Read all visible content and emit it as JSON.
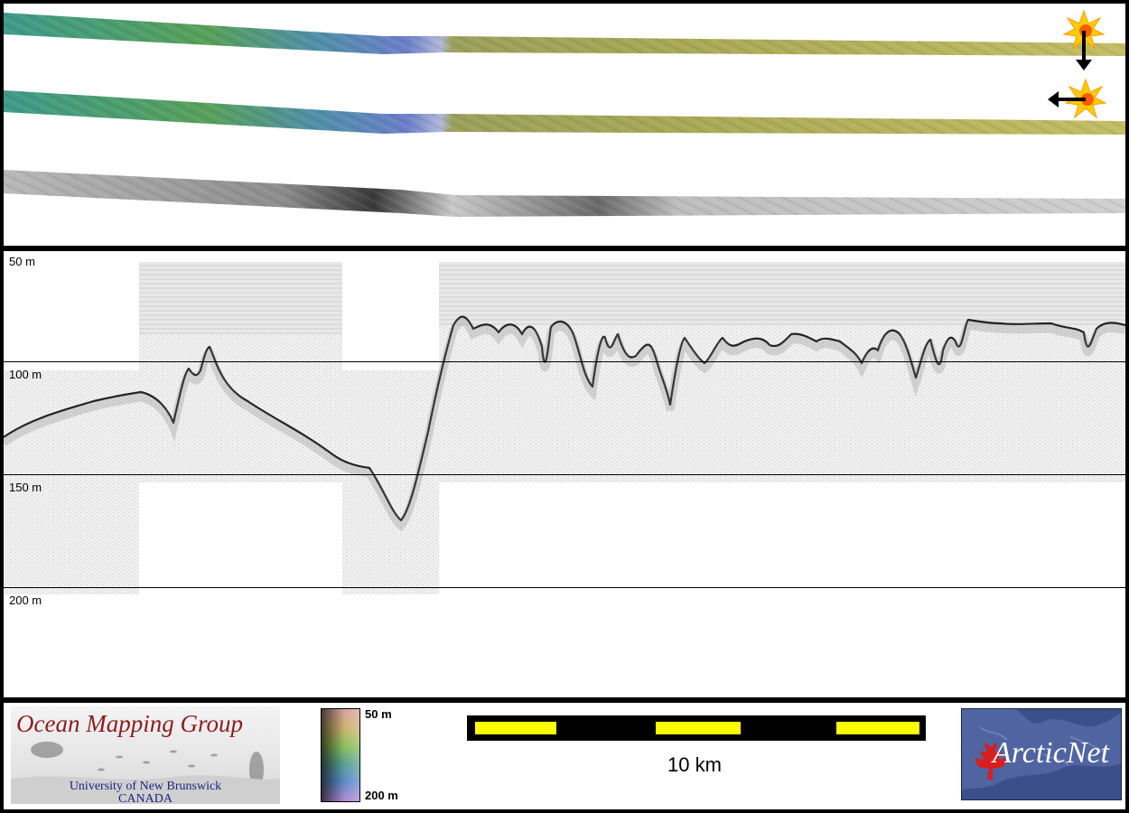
{
  "depth_axis": {
    "labels": [
      "50 m",
      "100 m",
      "150 m",
      "200 m"
    ]
  },
  "colorbar": {
    "top_label": "50 m",
    "bottom_label": "200 m"
  },
  "scale_bar": {
    "label": "10 km",
    "colors": {
      "filled": "#ffff00",
      "empty": "#000000"
    }
  },
  "logos": {
    "ocean_mapping": {
      "title": "Ocean Mapping Group",
      "line1": "University of New Brunswick",
      "line2": "CANADA"
    },
    "arcticnet": {
      "text": "ArcticNet"
    }
  },
  "sun_icons": [
    {
      "name": "sun-illumination-north-icon",
      "arrow": "down"
    },
    {
      "name": "sun-illumination-east-icon",
      "arrow": "left"
    }
  ],
  "colors": {
    "background": "#000000",
    "panel": "#ffffff",
    "swath_deep": "#4a8fb8",
    "swath_mid": "#5fae7a",
    "swath_shallow": "#b8b55a",
    "echogram_bg": "#efefef",
    "grid": "#000000"
  }
}
